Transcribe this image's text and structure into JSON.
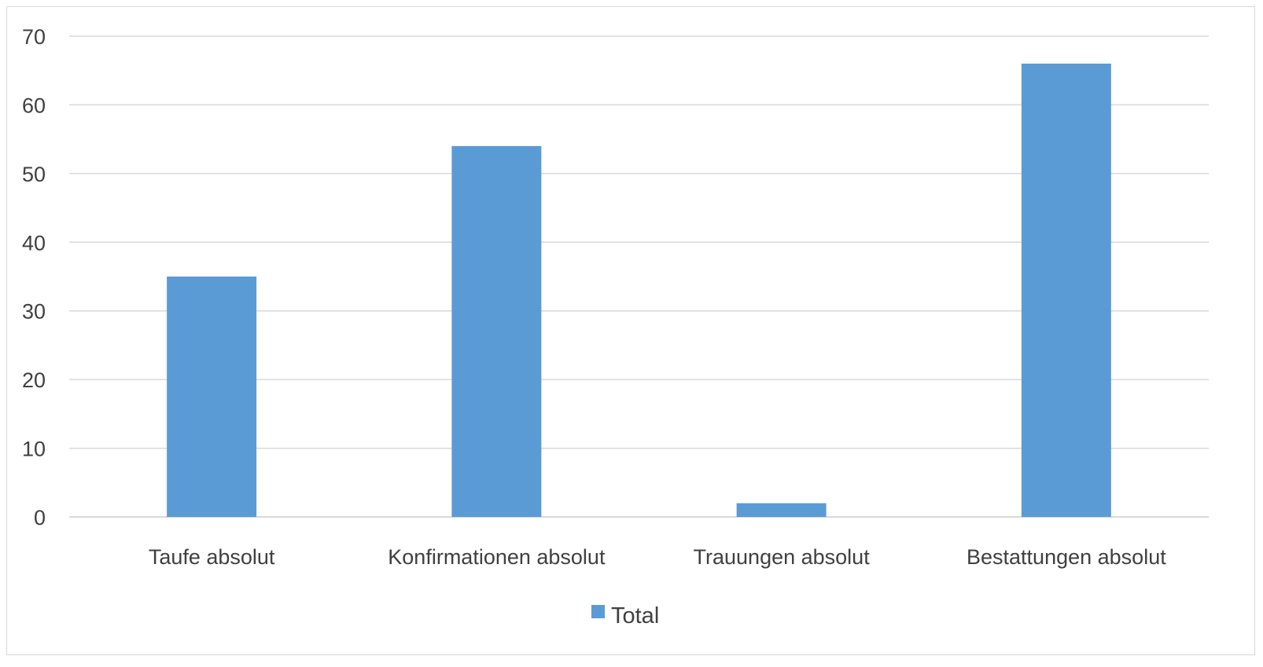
{
  "chart_data": {
    "type": "bar",
    "categories": [
      "Taufe absolut",
      "Konfirmationen absolut",
      "Trauungen absolut",
      "Bestattungen absolut"
    ],
    "series": [
      {
        "name": "Total",
        "values": [
          35,
          54,
          2,
          66
        ],
        "color": "#5b9bd5"
      }
    ],
    "yticks": [
      "0",
      "10",
      "20",
      "30",
      "40",
      "50",
      "60",
      "70"
    ],
    "ylim": [
      0,
      70
    ],
    "grid": true,
    "gridline_color": "#d9d9d9",
    "legend_position": "bottom",
    "title": "",
    "xlabel": "",
    "ylabel": ""
  }
}
